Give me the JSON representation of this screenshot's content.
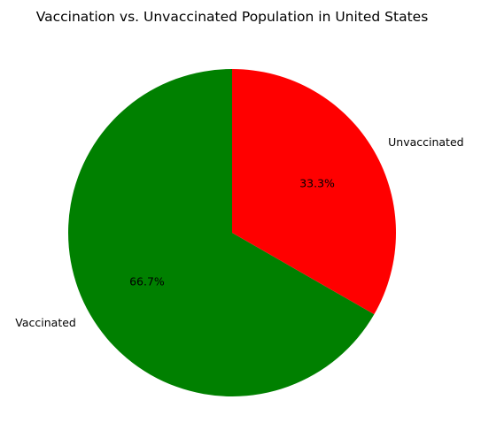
{
  "chart_data": {
    "type": "pie",
    "title": "Vaccination vs. Unvaccinated Population in United States",
    "start_angle_deg": 90,
    "direction": "counterclockwise",
    "slices": [
      {
        "label": "Vaccinated",
        "value": 66.7,
        "pct_label": "66.7%",
        "color": "#008000"
      },
      {
        "label": "Unvaccinated",
        "value": 33.3,
        "pct_label": "33.3%",
        "color": "#ff0000"
      }
    ]
  }
}
